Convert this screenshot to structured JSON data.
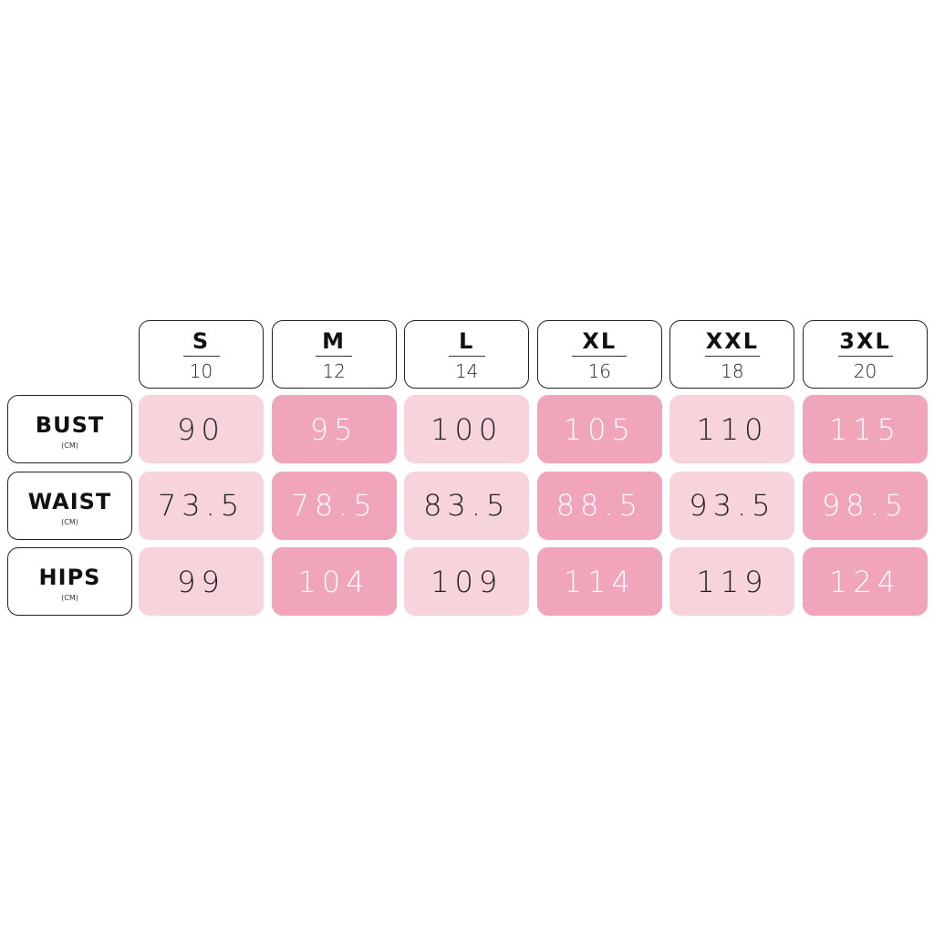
{
  "table": {
    "columns": [
      {
        "size": "S",
        "number": 10
      },
      {
        "size": "M",
        "number": 12
      },
      {
        "size": "L",
        "number": 14
      },
      {
        "size": "XL",
        "number": 16
      },
      {
        "size": "XXL",
        "number": 18
      },
      {
        "size": "3XL",
        "number": 20
      }
    ],
    "rows": [
      {
        "label": "BUST",
        "unit": "(CM)",
        "values": [
          90,
          95,
          100,
          105,
          110,
          115
        ]
      },
      {
        "label": "WAIST",
        "unit": "(CM)",
        "values": [
          73.5,
          78.5,
          83.5,
          88.5,
          93.5,
          98.5
        ]
      },
      {
        "label": "HIPS",
        "unit": "(CM)",
        "values": [
          99,
          104,
          109,
          114,
          119,
          124
        ]
      }
    ]
  }
}
